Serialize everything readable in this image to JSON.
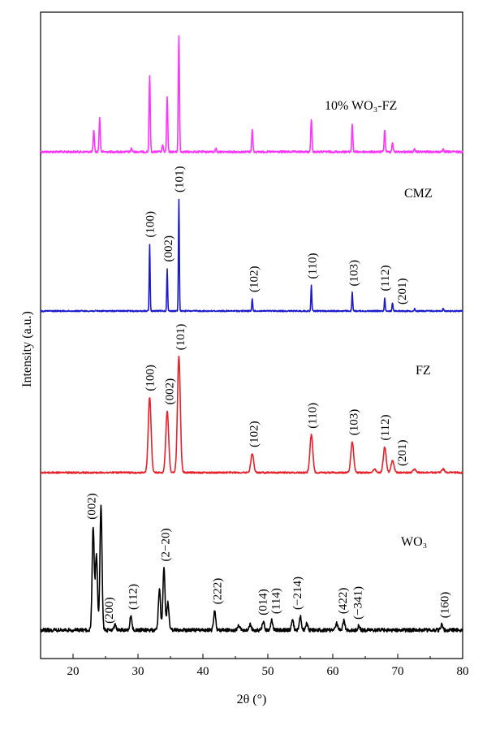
{
  "chart_data": {
    "type": "line",
    "xlabel": "2θ (°)",
    "ylabel": "Intensity (a.u.)",
    "xlim": [
      15,
      80
    ],
    "xticks": [
      20,
      30,
      40,
      50,
      60,
      70,
      80
    ],
    "xtick_labels": [
      "20",
      "30",
      "40",
      "50",
      "60",
      "70",
      "80"
    ],
    "grid": false,
    "series": [
      {
        "name": "10% WO₃-FZ",
        "color": "#ff33ff",
        "peaks": [
          [
            23.2,
            0.18
          ],
          [
            24.1,
            0.28
          ],
          [
            29.0,
            0.03
          ],
          [
            31.8,
            0.62
          ],
          [
            33.8,
            0.06
          ],
          [
            34.5,
            0.45
          ],
          [
            36.3,
            0.95
          ],
          [
            42.0,
            0.03
          ],
          [
            47.6,
            0.18
          ],
          [
            56.7,
            0.27
          ],
          [
            63.0,
            0.22
          ],
          [
            68.0,
            0.18
          ],
          [
            69.2,
            0.08
          ],
          [
            72.6,
            0.02
          ],
          [
            77.0,
            0.02
          ]
        ]
      },
      {
        "name": "CMZ",
        "color": "#1a1acc",
        "peaks": [
          [
            31.8,
            0.55
          ],
          [
            34.5,
            0.35
          ],
          [
            36.3,
            0.92
          ],
          [
            47.6,
            0.1
          ],
          [
            56.7,
            0.21
          ],
          [
            63.0,
            0.15
          ],
          [
            68.0,
            0.11
          ],
          [
            69.2,
            0.07
          ],
          [
            72.6,
            0.02
          ],
          [
            77.0,
            0.02
          ]
        ],
        "labels": [
          {
            "text": "(100)",
            "x": 31.8
          },
          {
            "text": "(002)",
            "x": 34.6
          },
          {
            "text": "(101)",
            "x": 36.3
          },
          {
            "text": "(102)",
            "x": 47.8
          },
          {
            "text": "(110)",
            "x": 56.8
          },
          {
            "text": "(103)",
            "x": 63.2
          },
          {
            "text": "(112)",
            "x": 68.0
          },
          {
            "text": "(201)",
            "x": 70.6
          }
        ]
      },
      {
        "name": "FZ",
        "color": "#e8202a",
        "peaks": [
          [
            31.8,
            0.44
          ],
          [
            34.5,
            0.36
          ],
          [
            36.3,
            0.68
          ],
          [
            47.6,
            0.11
          ],
          [
            56.7,
            0.22
          ],
          [
            63.0,
            0.18
          ],
          [
            66.4,
            0.02
          ],
          [
            68.0,
            0.15
          ],
          [
            69.2,
            0.07
          ],
          [
            72.6,
            0.02
          ],
          [
            77.0,
            0.02
          ]
        ],
        "labels": [
          {
            "text": "(100)",
            "x": 31.8
          },
          {
            "text": "(002)",
            "x": 34.8
          },
          {
            "text": "(101)",
            "x": 36.5
          },
          {
            "text": "(102)",
            "x": 47.8
          },
          {
            "text": "(110)",
            "x": 56.8
          },
          {
            "text": "(103)",
            "x": 63.2
          },
          {
            "text": "(112)",
            "x": 68.0
          },
          {
            "text": "(201)",
            "x": 70.6
          }
        ]
      },
      {
        "name": "WO₃",
        "color": "#000000",
        "peaks": [
          [
            23.1,
            0.75
          ],
          [
            23.6,
            0.55
          ],
          [
            24.3,
            0.9
          ],
          [
            26.5,
            0.04
          ],
          [
            28.9,
            0.1
          ],
          [
            33.3,
            0.3
          ],
          [
            34.0,
            0.45
          ],
          [
            34.6,
            0.2
          ],
          [
            41.8,
            0.14
          ],
          [
            45.5,
            0.04
          ],
          [
            47.3,
            0.04
          ],
          [
            49.3,
            0.06
          ],
          [
            50.6,
            0.07
          ],
          [
            53.8,
            0.07
          ],
          [
            55.0,
            0.1
          ],
          [
            56.0,
            0.05
          ],
          [
            60.6,
            0.05
          ],
          [
            61.7,
            0.07
          ],
          [
            64.0,
            0.03
          ],
          [
            76.8,
            0.04
          ]
        ],
        "labels": [
          {
            "text": "(002)",
            "x": 22.8
          },
          {
            "text": "(200)",
            "x": 25.5
          },
          {
            "text": "(112)",
            "x": 29.2
          },
          {
            "text": "(2−20)",
            "x": 34.2
          },
          {
            "text": "(222)",
            "x": 42.2
          },
          {
            "text": "(014)",
            "x": 49.2
          },
          {
            "text": "(114)",
            "x": 51.2
          },
          {
            "text": "(−214)",
            "x": 54.5
          },
          {
            "text": "(422)",
            "x": 61.5
          },
          {
            "text": "(−341)",
            "x": 63.8
          },
          {
            "text": "(160)",
            "x": 77.2
          }
        ]
      }
    ]
  }
}
